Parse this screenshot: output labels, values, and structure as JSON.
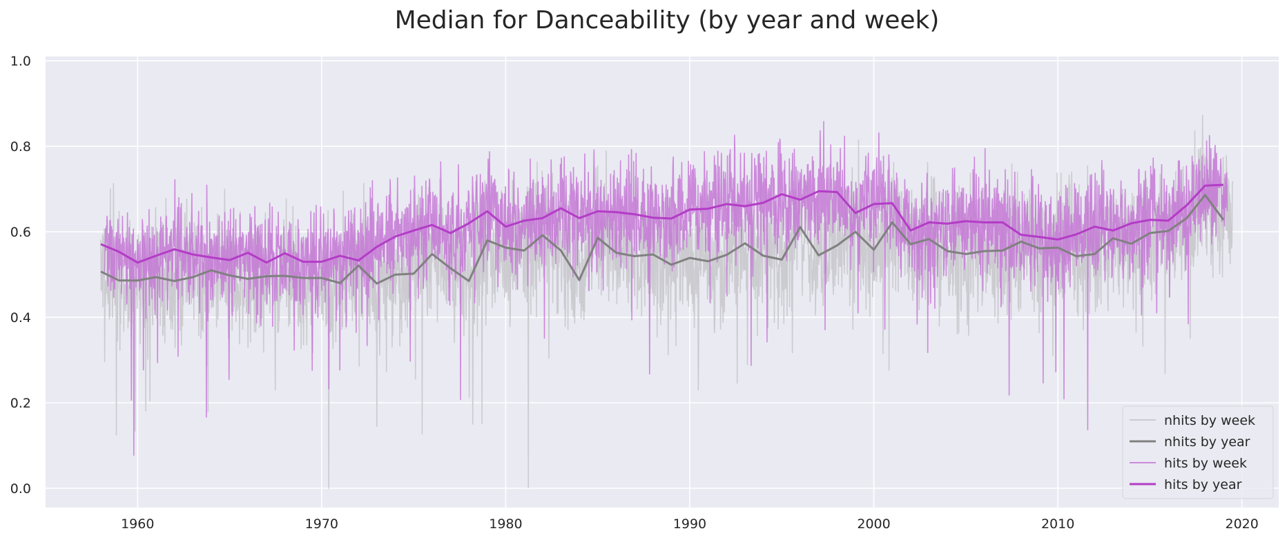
{
  "chart_data": {
    "type": "line",
    "title": "Median for Danceability (by year and week)",
    "xlabel": "",
    "ylabel": "",
    "xlim": [
      1955,
      2022
    ],
    "ylim": [
      -0.045,
      1.01
    ],
    "x_ticks": [
      "1960",
      "1970",
      "1980",
      "1990",
      "2000",
      "2010",
      "2020"
    ],
    "y_ticks": [
      "0.0",
      "0.2",
      "0.4",
      "0.6",
      "0.8",
      "1.0"
    ],
    "grid": true,
    "legend_position": "lower-right",
    "colors": {
      "background": "#eaeaf2",
      "grid": "#ffffff",
      "nhits_week": "#c8c8cc",
      "nhits_year": "#808080",
      "hits_week": "#c678d6",
      "hits_year": "#b33cc6"
    },
    "legend": [
      "nhits by week",
      "nhits by year",
      "hits by week",
      "hits by year"
    ],
    "yearly_series": [
      {
        "name": "nhits by year",
        "x": [
          1958,
          1959,
          1960,
          1961,
          1962,
          1963,
          1964,
          1965,
          1966,
          1967,
          1968,
          1969,
          1970,
          1971,
          1972,
          1973,
          1974,
          1975,
          1976,
          1977,
          1978,
          1979,
          1980,
          1981,
          1982,
          1983,
          1984,
          1985,
          1986,
          1987,
          1988,
          1989,
          1990,
          1991,
          1992,
          1993,
          1994,
          1995,
          1996,
          1997,
          1998,
          1999,
          2000,
          2001,
          2002,
          2003,
          2004,
          2005,
          2006,
          2007,
          2008,
          2009,
          2010,
          2011,
          2012,
          2013,
          2014,
          2015,
          2016,
          2017,
          2018,
          2019
        ],
        "values": [
          0.507,
          0.486,
          0.486,
          0.494,
          0.485,
          0.494,
          0.51,
          0.498,
          0.49,
          0.496,
          0.497,
          0.492,
          0.492,
          0.48,
          0.521,
          0.479,
          0.5,
          0.502,
          0.548,
          0.515,
          0.485,
          0.58,
          0.563,
          0.556,
          0.592,
          0.556,
          0.487,
          0.586,
          0.551,
          0.543,
          0.547,
          0.523,
          0.539,
          0.531,
          0.546,
          0.573,
          0.544,
          0.535,
          0.611,
          0.545,
          0.568,
          0.6,
          0.558,
          0.622,
          0.571,
          0.583,
          0.555,
          0.548,
          0.555,
          0.556,
          0.577,
          0.561,
          0.563,
          0.543,
          0.548,
          0.585,
          0.572,
          0.597,
          0.602,
          0.632,
          0.686,
          0.628
        ]
      },
      {
        "name": "hits by year",
        "x": [
          1958,
          1959,
          1960,
          1961,
          1962,
          1963,
          1964,
          1965,
          1966,
          1967,
          1968,
          1969,
          1970,
          1971,
          1972,
          1973,
          1974,
          1975,
          1976,
          1977,
          1978,
          1979,
          1980,
          1981,
          1982,
          1983,
          1984,
          1985,
          1986,
          1987,
          1988,
          1989,
          1990,
          1991,
          1992,
          1993,
          1994,
          1995,
          1996,
          1997,
          1998,
          1999,
          2000,
          2001,
          2002,
          2003,
          2004,
          2005,
          2006,
          2007,
          2008,
          2009,
          2010,
          2011,
          2012,
          2013,
          2014,
          2015,
          2016,
          2017,
          2018,
          2019
        ],
        "values": [
          0.571,
          0.553,
          0.528,
          0.544,
          0.559,
          0.547,
          0.54,
          0.534,
          0.551,
          0.528,
          0.55,
          0.53,
          0.53,
          0.544,
          0.533,
          0.565,
          0.589,
          0.603,
          0.616,
          0.597,
          0.62,
          0.648,
          0.612,
          0.626,
          0.632,
          0.655,
          0.632,
          0.648,
          0.646,
          0.641,
          0.633,
          0.631,
          0.652,
          0.654,
          0.665,
          0.66,
          0.668,
          0.688,
          0.675,
          0.695,
          0.693,
          0.644,
          0.665,
          0.667,
          0.603,
          0.622,
          0.619,
          0.625,
          0.622,
          0.622,
          0.593,
          0.588,
          0.582,
          0.594,
          0.612,
          0.603,
          0.62,
          0.628,
          0.626,
          0.662,
          0.708,
          0.71
        ]
      }
    ],
    "weekly_series": [
      {
        "name": "nhits by week",
        "x_start": 1958.0,
        "x_end": 2019.5,
        "band": "light gray weekly line around the nhits yearly trend"
      },
      {
        "name": "hits by week",
        "x_start": 1958.2,
        "x_end": 2019.2,
        "band": "light magenta weekly line around the hits yearly trend"
      }
    ]
  }
}
